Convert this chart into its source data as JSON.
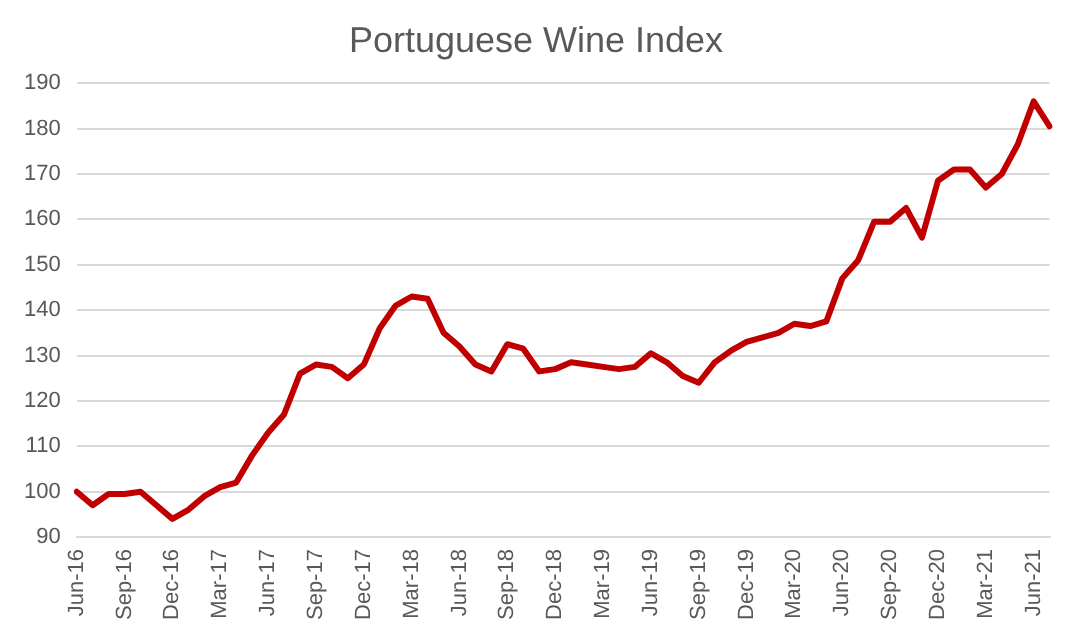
{
  "chart_data": {
    "type": "line",
    "title": "Portuguese Wine Index",
    "categories": [
      "Jun-16",
      null,
      null,
      "Sep-16",
      null,
      null,
      "Dec-16",
      null,
      null,
      "Mar-17",
      null,
      null,
      "Jun-17",
      null,
      null,
      "Sep-17",
      null,
      null,
      "Dec-17",
      null,
      null,
      "Mar-18",
      null,
      null,
      "Jun-18",
      null,
      null,
      "Sep-18",
      null,
      null,
      "Dec-18",
      null,
      null,
      "Mar-19",
      null,
      null,
      "Jun-19",
      null,
      null,
      "Sep-19",
      null,
      null,
      "Dec-19",
      null,
      null,
      "Mar-20",
      null,
      null,
      "Jun-20",
      null,
      null,
      "Sep-20",
      null,
      null,
      "Dec-20",
      null,
      null,
      "Mar-21",
      null,
      null,
      "Jun-21",
      null
    ],
    "series": [
      {
        "color": "#c00000",
        "values": [
          100,
          97,
          99.5,
          99.5,
          100,
          97,
          94,
          96,
          99,
          101,
          102,
          108,
          113,
          117,
          126,
          128,
          127.5,
          125,
          128,
          136,
          141,
          143,
          142.5,
          135,
          132,
          128,
          126.5,
          132.5,
          131.5,
          126.5,
          127,
          128.5,
          128,
          127.5,
          127,
          127.5,
          130.5,
          128.5,
          125.5,
          124,
          128.5,
          131,
          133,
          134,
          135,
          137,
          136.5,
          137.5,
          147,
          151,
          159.5,
          159.5,
          162.5,
          156,
          168.5,
          171,
          171,
          167,
          170,
          176.5,
          186,
          180.5
        ]
      }
    ],
    "ylim": [
      90,
      190
    ],
    "yticks": [
      90,
      100,
      110,
      120,
      130,
      140,
      150,
      160,
      170,
      180,
      190
    ],
    "grid": "y",
    "legend": false,
    "marker": "none",
    "line_style": "solid"
  }
}
